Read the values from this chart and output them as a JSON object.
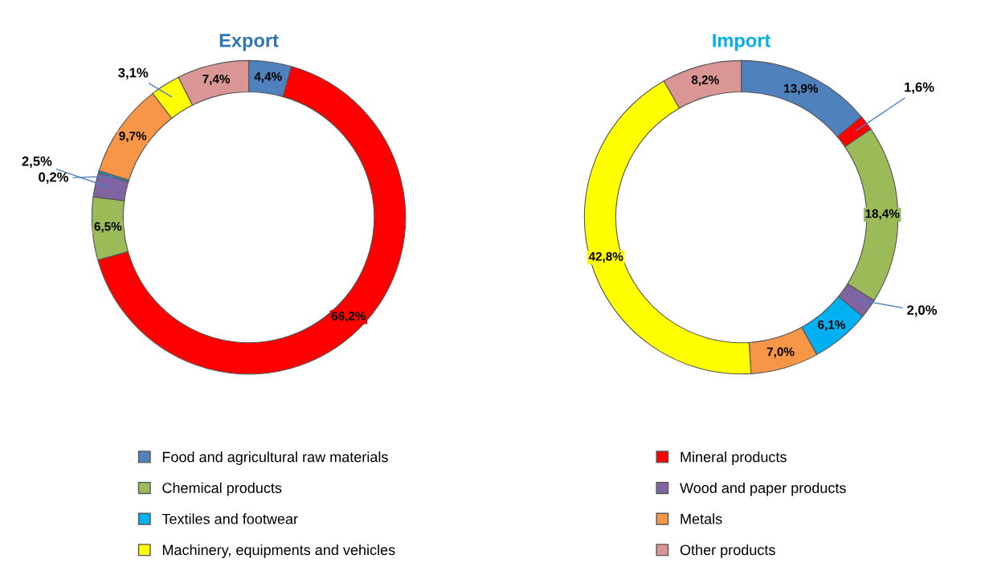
{
  "chart_data": {
    "type": "donut",
    "categories": [
      "Food and agricultural raw materials",
      "Mineral products",
      "Chemical products",
      "Wood and paper products",
      "Textiles and footwear",
      "Metals",
      "Machinery, equipments and vehicles",
      "Other products"
    ],
    "colors": [
      "#4f81bd",
      "#ff0000",
      "#9bbb59",
      "#8064a2",
      "#00b0f0",
      "#f79646",
      "#ffff00",
      "#d99694"
    ],
    "series": [
      {
        "name": "Export",
        "color": "#2e75b6",
        "values": [
          4.4,
          66.2,
          6.5,
          2.5,
          0.2,
          9.7,
          3.1,
          7.4
        ],
        "value_labels": [
          "4,4%",
          "66,2%",
          "6,5%",
          "2,5%",
          "0,2%",
          "9,7%",
          "3,1%",
          "7,4%"
        ]
      },
      {
        "name": "Import",
        "color": "#00b0f0",
        "values": [
          13.9,
          1.6,
          18.4,
          2.0,
          6.1,
          7.0,
          42.8,
          8.2
        ],
        "value_labels": [
          "13,9%",
          "1,6%",
          "18,4%",
          "2,0%",
          "6,1%",
          "7,0%",
          "42,8%",
          "8,2%"
        ]
      }
    ],
    "legend": "bottom"
  }
}
